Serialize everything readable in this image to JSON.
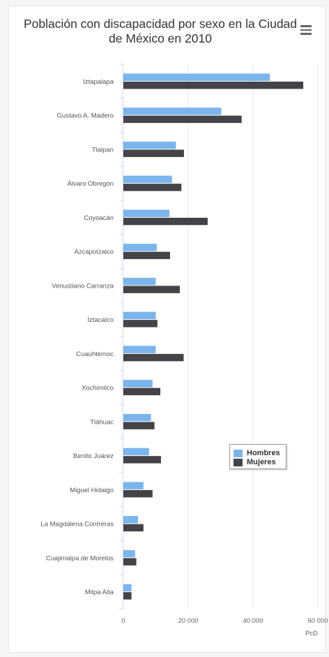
{
  "chart_data": {
    "type": "bar",
    "orientation": "horizontal",
    "title": "Población con discapacidad por sexo en la Ciudad de México en 2010",
    "xlabel": "PcD",
    "ylabel": "",
    "xlim": [
      0,
      60000
    ],
    "x_ticks": [
      0,
      20000,
      40000,
      60000
    ],
    "x_tick_labels": [
      "0",
      "20 000",
      "40 000",
      "60 000"
    ],
    "grid": true,
    "legend_position": "right",
    "categories": [
      "Iztapalapa",
      "Gustavo A. Madero",
      "Tlalpan",
      "Álvaro Obregón",
      "Coyoacán",
      "Azcapotzalco",
      "Venustiano Carranza",
      "Iztacalco",
      "Cuauhtémoc",
      "Xochimilco",
      "Tláhuac",
      "Benito Juárez",
      "Miguel Hidalgo",
      "La Magdalena Contreras",
      "Cuajimalpa de Morelos",
      "Milpa Alta"
    ],
    "series": [
      {
        "name": "Hombres",
        "color": "#7cb5ec",
        "values": [
          45200,
          30200,
          16200,
          15000,
          14200,
          10300,
          10000,
          10000,
          10000,
          9000,
          8500,
          7900,
          6200,
          4500,
          3600,
          2500
        ]
      },
      {
        "name": "Mujeres",
        "color": "#434348",
        "values": [
          55500,
          36500,
          18700,
          17900,
          26000,
          14400,
          17400,
          10500,
          18600,
          11400,
          9600,
          11600,
          9000,
          6200,
          4000,
          2500
        ]
      }
    ]
  }
}
